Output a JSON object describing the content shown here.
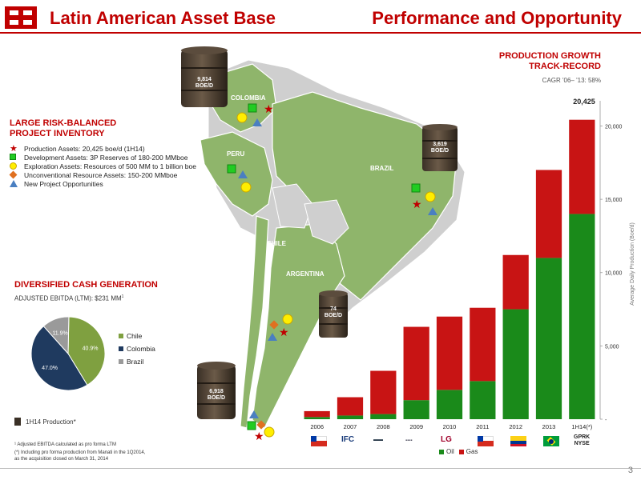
{
  "header": {
    "title_left": "Latin American Asset Base",
    "title_right": "Performance and Opportunity"
  },
  "inventory": {
    "title_line1": "LARGE RISK-BALANCED",
    "title_line2": "PROJECT INVENTORY",
    "items": [
      {
        "symbol": "star",
        "text": "Production Assets: 20,425 boe/d (1H14)"
      },
      {
        "symbol": "square",
        "text": "Development Assets: 3P Reserves of 180-200 MMboe"
      },
      {
        "symbol": "circle",
        "text": "Exploration Assets: Resources of 500 MM to 1 billion boe"
      },
      {
        "symbol": "diamond",
        "text": "Unconventional Resource Assets: 150-200 MMboe"
      },
      {
        "symbol": "triangle",
        "text": "New Project Opportunities"
      }
    ]
  },
  "cash": {
    "title": "DIVERSIFIED CASH GENERATION",
    "subtitle": "ADJUSTED EBITDA (LTM): $231 MM",
    "subtitle_sup": "1",
    "pie_legend": [
      "Chile",
      "Colombia",
      "Brazil"
    ],
    "barrel_key": "1H14 Production*"
  },
  "footnotes": {
    "f1": "¹ Adjusted EBITDA calculated as pro forma LTM",
    "f2": "(*) Including pro forma production from Manati in the 1Q2014,",
    "f3": "as the acquisition closed on March 31, 2014"
  },
  "map": {
    "countries": [
      "COLOMBIA",
      "PERU",
      "BRAZIL",
      "CHILE",
      "ARGENTINA"
    ],
    "barrels": [
      {
        "value": "9,814",
        "unit": "BOE/D"
      },
      {
        "value": "3,619",
        "unit": "BOE/D"
      },
      {
        "value": "74",
        "unit": "BOE/D"
      },
      {
        "value": "6,918",
        "unit": "BOE/D"
      }
    ]
  },
  "chart_header": {
    "title_line1": "PRODUCTION GROWTH",
    "title_line2": "TRACK-RECORD",
    "cagr": "CAGR '06– '13: 58%",
    "top_label": "20,425"
  },
  "colors": {
    "brand_red": "#c00000",
    "map_green": "#8fb56b",
    "oil": "#1a8a1a",
    "gas": "#c81414",
    "pie_chile": "#7fa040",
    "pie_colombia": "#1f3a5f",
    "pie_brazil": "#9a9a9a"
  },
  "exchange": {
    "top": "GPRK",
    "bottom": "NYSE"
  },
  "sponsor_logos": [
    "IFC",
    "LG"
  ],
  "page_number": "3",
  "chart_data": [
    {
      "type": "bar",
      "stacked": true,
      "categories": [
        "2006",
        "2007",
        "2008",
        "2009",
        "2010",
        "2011",
        "2012",
        "2013",
        "1H14(*)"
      ],
      "series": [
        {
          "name": "Oil",
          "values": [
            150,
            250,
            350,
            1300,
            2000,
            2600,
            7500,
            11000,
            14000
          ]
        },
        {
          "name": "Gas",
          "values": [
            400,
            1250,
            2950,
            5000,
            5000,
            5000,
            3700,
            6000,
            6425
          ]
        }
      ],
      "ylabel": "Average Daily Production (Boe/d)",
      "ylim": [
        0,
        21500
      ],
      "yticks": [
        "-",
        "5,000",
        "10,000",
        "15,000",
        "20,000"
      ],
      "legend": "bottom"
    },
    {
      "type": "pie",
      "labels": [
        "Chile",
        "Colombia",
        "Brazil"
      ],
      "values": [
        40.9,
        47.0,
        11.9
      ],
      "value_labels": [
        "40.9%",
        "47.0%",
        "11.9%"
      ],
      "legend": "right"
    }
  ]
}
